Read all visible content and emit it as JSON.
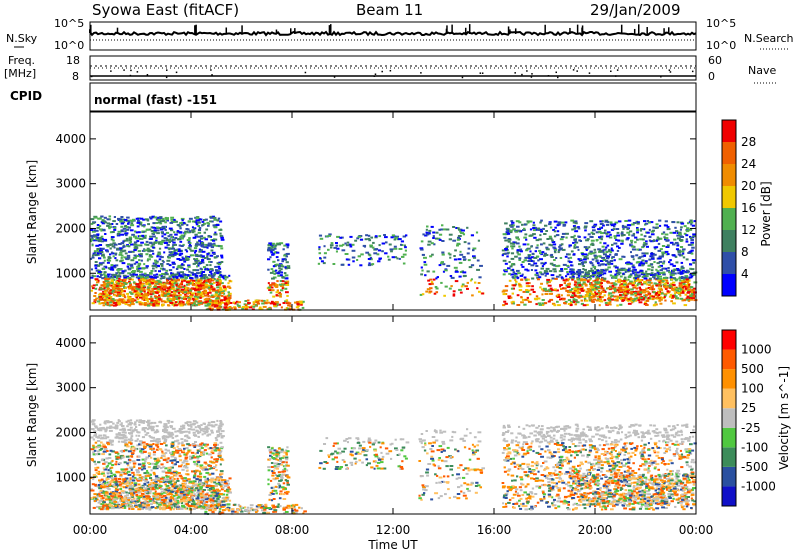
{
  "header": {
    "title": "Syowa East (fitACF)",
    "beam": "Beam 11",
    "date": "29/Jan/2009"
  },
  "noise_panel": {
    "left_label": "N.Sky",
    "right_label": "N.Search",
    "y_ticks_left": [
      "10^5",
      "10^0"
    ],
    "y_ticks_right": [
      "10^5",
      "10^0"
    ]
  },
  "freq_panel": {
    "label_line1": "Freq.",
    "label_line2": "[MHz]",
    "y_ticks_left": [
      "18",
      "8"
    ],
    "right_label": "Nave",
    "y_ticks_right": [
      "60",
      "0"
    ],
    "cpid_label": "CPID",
    "cpid_text": "normal (fast) -151"
  },
  "colors": {
    "power": [
      "#0000ff",
      "#2f4fa8",
      "#3f8060",
      "#50b050",
      "#f0c800",
      "#f08c00",
      "#f06000",
      "#f00000"
    ],
    "velocity": [
      "#ff0000",
      "#ff5a00",
      "#ff9000",
      "#ffc060",
      "#bebebe",
      "#50c840",
      "#3c8c5a",
      "#2a50a0",
      "#1010c8"
    ]
  },
  "chart_data": [
    {
      "type": "heatmap",
      "name": "power",
      "ylabel": "Slant Range [km]",
      "ylim": [
        180,
        4600
      ],
      "yticks": [
        1000,
        2000,
        3000,
        4000
      ],
      "xlim": [
        0,
        24
      ],
      "colorbar_label": "Power [dB]",
      "colorbar_ticks": [
        "4",
        "8",
        "12",
        "16",
        "20",
        "24",
        "28"
      ]
    },
    {
      "type": "heatmap",
      "name": "velocity",
      "ylabel": "Slant Range [km]",
      "ylim": [
        180,
        4600
      ],
      "yticks": [
        1000,
        2000,
        3000,
        4000
      ],
      "xlim": [
        0,
        24
      ],
      "xlabel": "Time UT",
      "xticks": [
        "00:00",
        "04:00",
        "08:00",
        "12:00",
        "16:00",
        "20:00",
        "00:00"
      ],
      "colorbar_label": "Velocity [m s^-1]",
      "colorbar_ticks": [
        "1000",
        "500",
        "100",
        "25",
        "-25",
        "-100",
        "-500",
        "-1000"
      ]
    }
  ]
}
